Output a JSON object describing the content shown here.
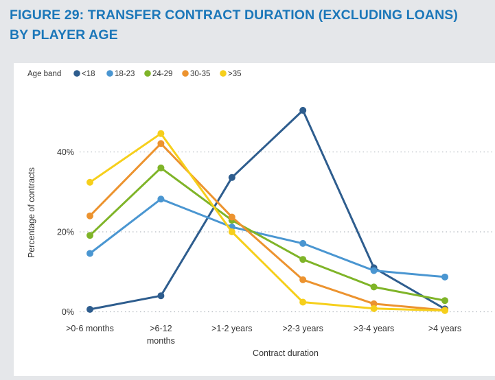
{
  "figure": {
    "title_line1": "FIGURE 29: TRANSFER CONTRACT DURATION (EXCLUDING LOANS)",
    "title_line2": "BY PLAYER AGE"
  },
  "chart_data": {
    "type": "line",
    "title": "Transfer contract duration (excluding loans) by player age",
    "xlabel": "Contract duration",
    "ylabel": "Percentage of contracts",
    "ylim": [
      0,
      50
    ],
    "yticks": [
      0,
      20,
      40
    ],
    "ytick_labels": [
      "0%",
      "20%",
      "40%"
    ],
    "grid": true,
    "legend_title": "Age band",
    "legend_position": "top-left",
    "categories": [
      ">0-6 months",
      ">6-12 months",
      ">1-2 years",
      ">2-3 years",
      ">3-4 years",
      ">4 years"
    ],
    "category_lines": [
      [
        ">0-6 months"
      ],
      [
        ">6-12",
        "months"
      ],
      [
        ">1-2 years"
      ],
      [
        ">2-3 years"
      ],
      [
        ">3-4 years"
      ],
      [
        ">4 years"
      ]
    ],
    "series": [
      {
        "name": "<18",
        "color": "#2e5d8e",
        "values": [
          0.6,
          4.0,
          33.6,
          50.4,
          11.0,
          0.7
        ]
      },
      {
        "name": "18-23",
        "color": "#4a96d1",
        "values": [
          14.6,
          28.2,
          21.2,
          17.1,
          10.3,
          8.7
        ]
      },
      {
        "name": "24-29",
        "color": "#7fb428",
        "values": [
          19.1,
          36.0,
          22.9,
          13.1,
          6.2,
          2.8
        ]
      },
      {
        "name": "30-35",
        "color": "#ec932f",
        "values": [
          24.0,
          42.1,
          23.7,
          8.0,
          2.0,
          0.4
        ]
      },
      {
        "name": ">35",
        "color": "#f6cf1b",
        "values": [
          32.4,
          44.6,
          20.0,
          2.4,
          0.8,
          0.3
        ]
      }
    ]
  }
}
